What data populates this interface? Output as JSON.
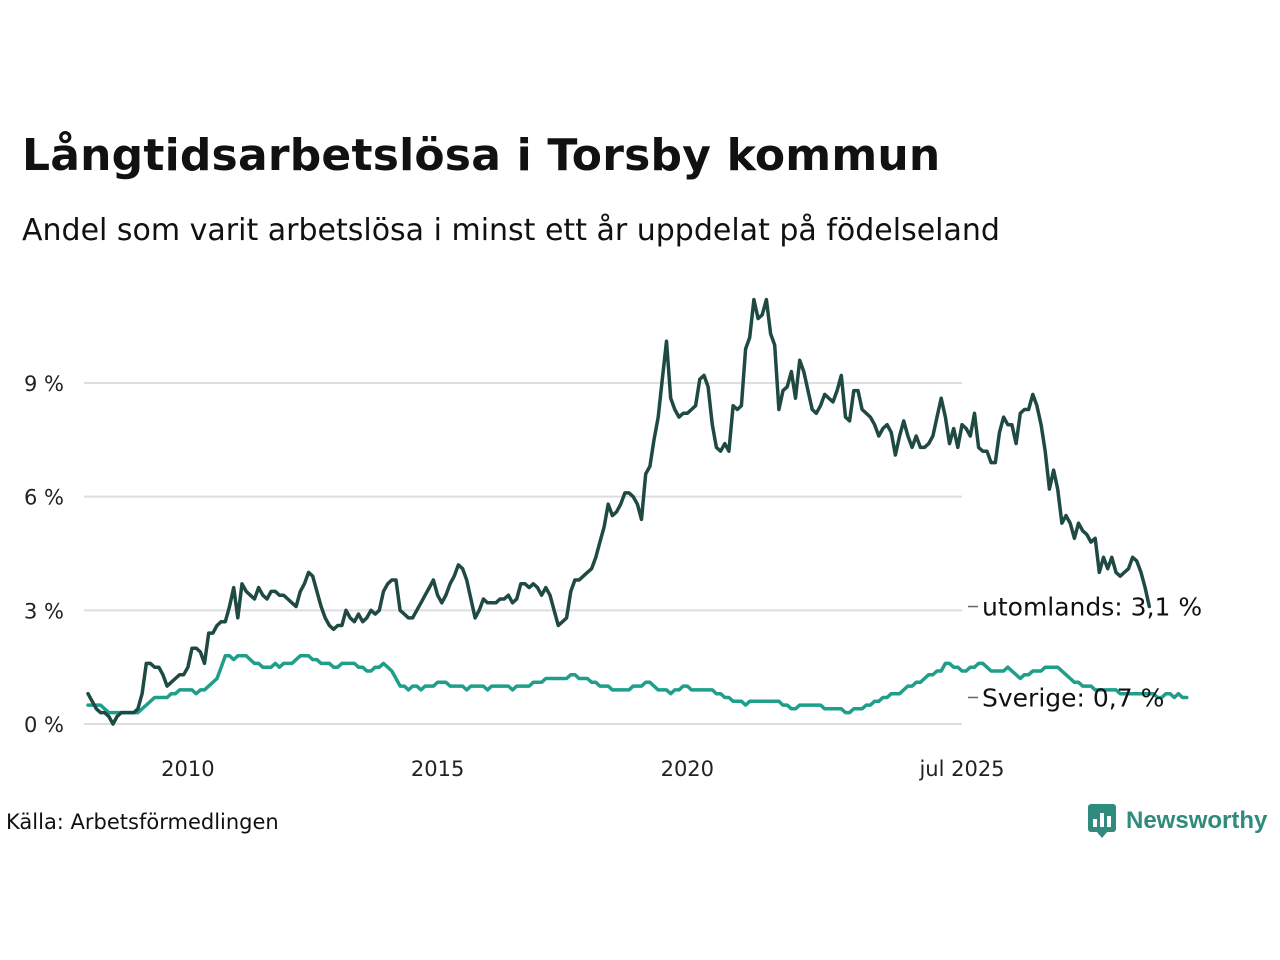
{
  "title": "Långtidsarbetslösa i Torsby kommun",
  "subtitle": "Andel som varit arbetslösa i minst ett år uppdelat på födelseland",
  "source": "Källa: Arbetsförmedlingen",
  "brand": {
    "name": "Newsworthy",
    "logo_icon": "bar-chart-speech-bubble-icon",
    "color": "#2e8b7d"
  },
  "chart_data": {
    "type": "line",
    "x_start": "2008-01",
    "x_end": "2025-07",
    "x_step": "month",
    "ylim": [
      0,
      11.5
    ],
    "grid": true,
    "y_ticks": [
      {
        "value": 0,
        "label": "0 %"
      },
      {
        "value": 3,
        "label": "3 %"
      },
      {
        "value": 6,
        "label": "6 %"
      },
      {
        "value": 9,
        "label": "9 %"
      }
    ],
    "x_ticks": [
      {
        "date": "2010-01",
        "label": "2010"
      },
      {
        "date": "2015-01",
        "label": "2015"
      },
      {
        "date": "2020-01",
        "label": "2020"
      },
      {
        "date": "2025-07",
        "label": "jul 2025"
      }
    ],
    "series": [
      {
        "name": "utomlands",
        "end_label": "utomlands: 3,1 %",
        "color": "#1f4a44",
        "values": [
          0.8,
          0.6,
          0.4,
          0.3,
          0.3,
          0.2,
          0.0,
          0.2,
          0.3,
          0.3,
          0.3,
          0.3,
          0.4,
          0.8,
          1.6,
          1.6,
          1.5,
          1.5,
          1.3,
          1.0,
          1.1,
          1.2,
          1.3,
          1.3,
          1.5,
          2.0,
          2.0,
          1.9,
          1.6,
          2.4,
          2.4,
          2.6,
          2.7,
          2.7,
          3.1,
          3.6,
          2.8,
          3.7,
          3.5,
          3.4,
          3.3,
          3.6,
          3.4,
          3.3,
          3.5,
          3.5,
          3.4,
          3.4,
          3.3,
          3.2,
          3.1,
          3.5,
          3.7,
          4.0,
          3.9,
          3.5,
          3.1,
          2.8,
          2.6,
          2.5,
          2.6,
          2.6,
          3.0,
          2.8,
          2.7,
          2.9,
          2.7,
          2.8,
          3.0,
          2.9,
          3.0,
          3.5,
          3.7,
          3.8,
          3.8,
          3.0,
          2.9,
          2.8,
          2.8,
          3.0,
          3.2,
          3.4,
          3.6,
          3.8,
          3.4,
          3.2,
          3.4,
          3.7,
          3.9,
          4.2,
          4.1,
          3.8,
          3.3,
          2.8,
          3.0,
          3.3,
          3.2,
          3.2,
          3.2,
          3.3,
          3.3,
          3.4,
          3.2,
          3.3,
          3.7,
          3.7,
          3.6,
          3.7,
          3.6,
          3.4,
          3.6,
          3.4,
          3.0,
          2.6,
          2.7,
          2.8,
          3.5,
          3.8,
          3.8,
          3.9,
          4.0,
          4.1,
          4.4,
          4.8,
          5.2,
          5.8,
          5.5,
          5.6,
          5.8,
          6.1,
          6.1,
          6.0,
          5.8,
          5.4,
          6.6,
          6.8,
          7.5,
          8.1,
          9.1,
          10.1,
          8.6,
          8.3,
          8.1,
          8.2,
          8.2,
          8.3,
          8.4,
          9.1,
          9.2,
          8.9,
          7.9,
          7.3,
          7.2,
          7.4,
          7.2,
          8.4,
          8.3,
          8.4,
          9.9,
          10.2,
          11.2,
          10.7,
          10.8,
          11.2,
          10.3,
          10.0,
          8.3,
          8.8,
          8.9,
          9.3,
          8.6,
          9.6,
          9.3,
          8.8,
          8.3,
          8.2,
          8.4,
          8.7,
          8.6,
          8.5,
          8.8,
          9.2,
          8.1,
          8.0,
          8.8,
          8.8,
          8.3,
          8.2,
          8.1,
          7.9,
          7.6,
          7.8,
          7.9,
          7.7,
          7.1,
          7.6,
          8.0,
          7.6,
          7.3,
          7.6,
          7.3,
          7.3,
          7.4,
          7.6,
          8.1,
          8.6,
          8.1,
          7.4,
          7.8,
          7.3,
          7.9,
          7.8,
          7.6,
          8.2,
          7.3,
          7.2,
          7.2,
          6.9,
          6.9,
          7.7,
          8.1,
          7.9,
          7.9,
          7.4,
          8.2,
          8.3,
          8.3,
          8.7,
          8.4,
          7.9,
          7.2,
          6.2,
          6.7,
          6.2,
          5.3,
          5.5,
          5.3,
          4.9,
          5.3,
          5.1,
          5.0,
          4.8,
          4.9,
          4.0,
          4.4,
          4.1,
          4.4,
          4.0,
          3.9,
          4.0,
          4.1,
          4.4,
          4.3,
          4.0,
          3.6,
          3.1
        ]
      },
      {
        "name": "Sverige",
        "end_label": "Sverige: 0,7 %",
        "color": "#1f9e8a",
        "values": [
          0.5,
          0.5,
          0.5,
          0.5,
          0.4,
          0.3,
          0.3,
          0.3,
          0.3,
          0.3,
          0.3,
          0.3,
          0.3,
          0.4,
          0.5,
          0.6,
          0.7,
          0.7,
          0.7,
          0.7,
          0.8,
          0.8,
          0.9,
          0.9,
          0.9,
          0.9,
          0.8,
          0.9,
          0.9,
          1.0,
          1.1,
          1.2,
          1.5,
          1.8,
          1.8,
          1.7,
          1.8,
          1.8,
          1.8,
          1.7,
          1.6,
          1.6,
          1.5,
          1.5,
          1.5,
          1.6,
          1.5,
          1.6,
          1.6,
          1.6,
          1.7,
          1.8,
          1.8,
          1.8,
          1.7,
          1.7,
          1.6,
          1.6,
          1.6,
          1.5,
          1.5,
          1.6,
          1.6,
          1.6,
          1.6,
          1.5,
          1.5,
          1.4,
          1.4,
          1.5,
          1.5,
          1.6,
          1.5,
          1.4,
          1.2,
          1.0,
          1.0,
          0.9,
          1.0,
          1.0,
          0.9,
          1.0,
          1.0,
          1.0,
          1.1,
          1.1,
          1.1,
          1.0,
          1.0,
          1.0,
          1.0,
          0.9,
          1.0,
          1.0,
          1.0,
          1.0,
          0.9,
          1.0,
          1.0,
          1.0,
          1.0,
          1.0,
          0.9,
          1.0,
          1.0,
          1.0,
          1.0,
          1.1,
          1.1,
          1.1,
          1.2,
          1.2,
          1.2,
          1.2,
          1.2,
          1.2,
          1.3,
          1.3,
          1.2,
          1.2,
          1.2,
          1.1,
          1.1,
          1.0,
          1.0,
          1.0,
          0.9,
          0.9,
          0.9,
          0.9,
          0.9,
          1.0,
          1.0,
          1.0,
          1.1,
          1.1,
          1.0,
          0.9,
          0.9,
          0.9,
          0.8,
          0.9,
          0.9,
          1.0,
          1.0,
          0.9,
          0.9,
          0.9,
          0.9,
          0.9,
          0.9,
          0.8,
          0.8,
          0.7,
          0.7,
          0.6,
          0.6,
          0.6,
          0.5,
          0.6,
          0.6,
          0.6,
          0.6,
          0.6,
          0.6,
          0.6,
          0.6,
          0.5,
          0.5,
          0.4,
          0.4,
          0.5,
          0.5,
          0.5,
          0.5,
          0.5,
          0.5,
          0.4,
          0.4,
          0.4,
          0.4,
          0.4,
          0.3,
          0.3,
          0.4,
          0.4,
          0.4,
          0.5,
          0.5,
          0.6,
          0.6,
          0.7,
          0.7,
          0.8,
          0.8,
          0.8,
          0.9,
          1.0,
          1.0,
          1.1,
          1.1,
          1.2,
          1.3,
          1.3,
          1.4,
          1.4,
          1.6,
          1.6,
          1.5,
          1.5,
          1.4,
          1.4,
          1.5,
          1.5,
          1.6,
          1.6,
          1.5,
          1.4,
          1.4,
          1.4,
          1.4,
          1.5,
          1.4,
          1.3,
          1.2,
          1.3,
          1.3,
          1.4,
          1.4,
          1.4,
          1.5,
          1.5,
          1.5,
          1.5,
          1.4,
          1.3,
          1.2,
          1.1,
          1.1,
          1.0,
          1.0,
          1.0,
          0.9,
          0.9,
          0.9,
          0.9,
          0.9,
          0.9,
          0.8,
          0.8,
          0.8,
          0.8,
          0.8,
          0.8,
          0.8,
          0.8,
          0.8,
          0.7,
          0.7,
          0.8,
          0.8,
          0.7,
          0.8,
          0.7,
          0.7
        ]
      }
    ]
  }
}
